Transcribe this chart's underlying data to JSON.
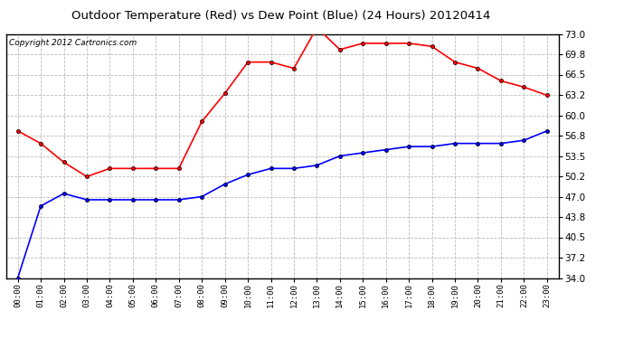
{
  "title": "Outdoor Temperature (Red) vs Dew Point (Blue) (24 Hours) 20120414",
  "copyright_text": "Copyright 2012 Cartronics.com",
  "x_labels": [
    "00:00",
    "01:00",
    "02:00",
    "03:00",
    "04:00",
    "05:00",
    "06:00",
    "07:00",
    "08:00",
    "09:00",
    "10:00",
    "11:00",
    "12:00",
    "13:00",
    "14:00",
    "15:00",
    "16:00",
    "17:00",
    "18:00",
    "19:00",
    "20:00",
    "21:00",
    "22:00",
    "23:00"
  ],
  "temp_red": [
    57.5,
    55.5,
    52.5,
    50.2,
    51.5,
    51.5,
    51.5,
    51.5,
    59.0,
    63.5,
    68.5,
    68.5,
    67.5,
    74.0,
    70.5,
    71.5,
    71.5,
    71.5,
    71.0,
    68.5,
    67.5,
    65.5,
    64.5,
    63.2
  ],
  "dew_blue": [
    34.0,
    45.5,
    47.5,
    46.5,
    46.5,
    46.5,
    46.5,
    46.5,
    47.0,
    49.0,
    50.5,
    51.5,
    51.5,
    52.0,
    53.5,
    54.0,
    54.5,
    55.0,
    55.0,
    55.5,
    55.5,
    55.5,
    56.0,
    57.5
  ],
  "y_min": 34.0,
  "y_max": 73.0,
  "y_ticks": [
    34.0,
    37.2,
    40.5,
    43.8,
    47.0,
    50.2,
    53.5,
    56.8,
    60.0,
    63.2,
    66.5,
    69.8,
    73.0
  ],
  "bg_color": "#ffffff",
  "grid_color": "#bbbbbb",
  "title_fontsize": 9.5,
  "copyright_fontsize": 6.5,
  "tick_fontsize": 7.5,
  "xtick_fontsize": 6.5
}
